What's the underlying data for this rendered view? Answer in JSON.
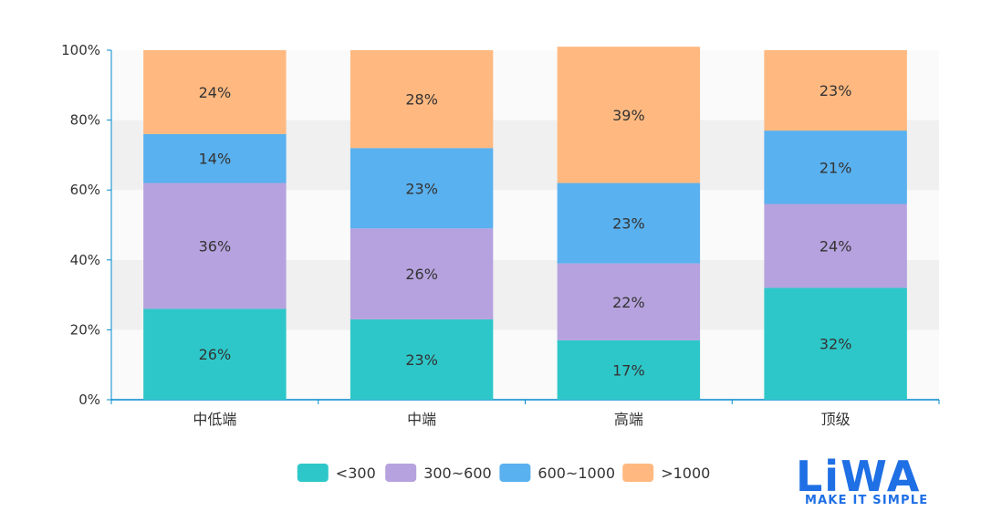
{
  "chart_data": {
    "type": "bar",
    "stacked": true,
    "normalized": true,
    "categories": [
      "中低端",
      "中端",
      "高端",
      "顶级"
    ],
    "series": [
      {
        "name": "<300",
        "values": [
          26,
          23,
          17,
          32
        ],
        "color": "#2ec7c9"
      },
      {
        "name": "300~600",
        "values": [
          36,
          26,
          22,
          24
        ],
        "color": "#b6a2de"
      },
      {
        "name": "600~1000",
        "values": [
          14,
          23,
          23,
          21
        ],
        "color": "#5ab1ef"
      },
      {
        "name": ">1000",
        "values": [
          24,
          28,
          39,
          23
        ],
        "color": "#ffb980"
      }
    ],
    "data_labels": [
      [
        "26%",
        "23%",
        "17%",
        "32%"
      ],
      [
        "36%",
        "26%",
        "22%",
        "24%"
      ],
      [
        "14%",
        "23%",
        "23%",
        "21%"
      ],
      [
        "24%",
        "28%",
        "39%",
        "23%"
      ]
    ],
    "y_ticks": [
      "0%",
      "20%",
      "40%",
      "60%",
      "80%",
      "100%"
    ],
    "ylim": [
      0,
      100
    ],
    "y_split_area": true,
    "legend_position": "bottom-center",
    "title": "",
    "xlabel": "",
    "ylabel": ""
  },
  "logo": {
    "text": "LiWA",
    "tagline": "MAKE IT SIMPLE",
    "color": "#1f6fe5"
  }
}
